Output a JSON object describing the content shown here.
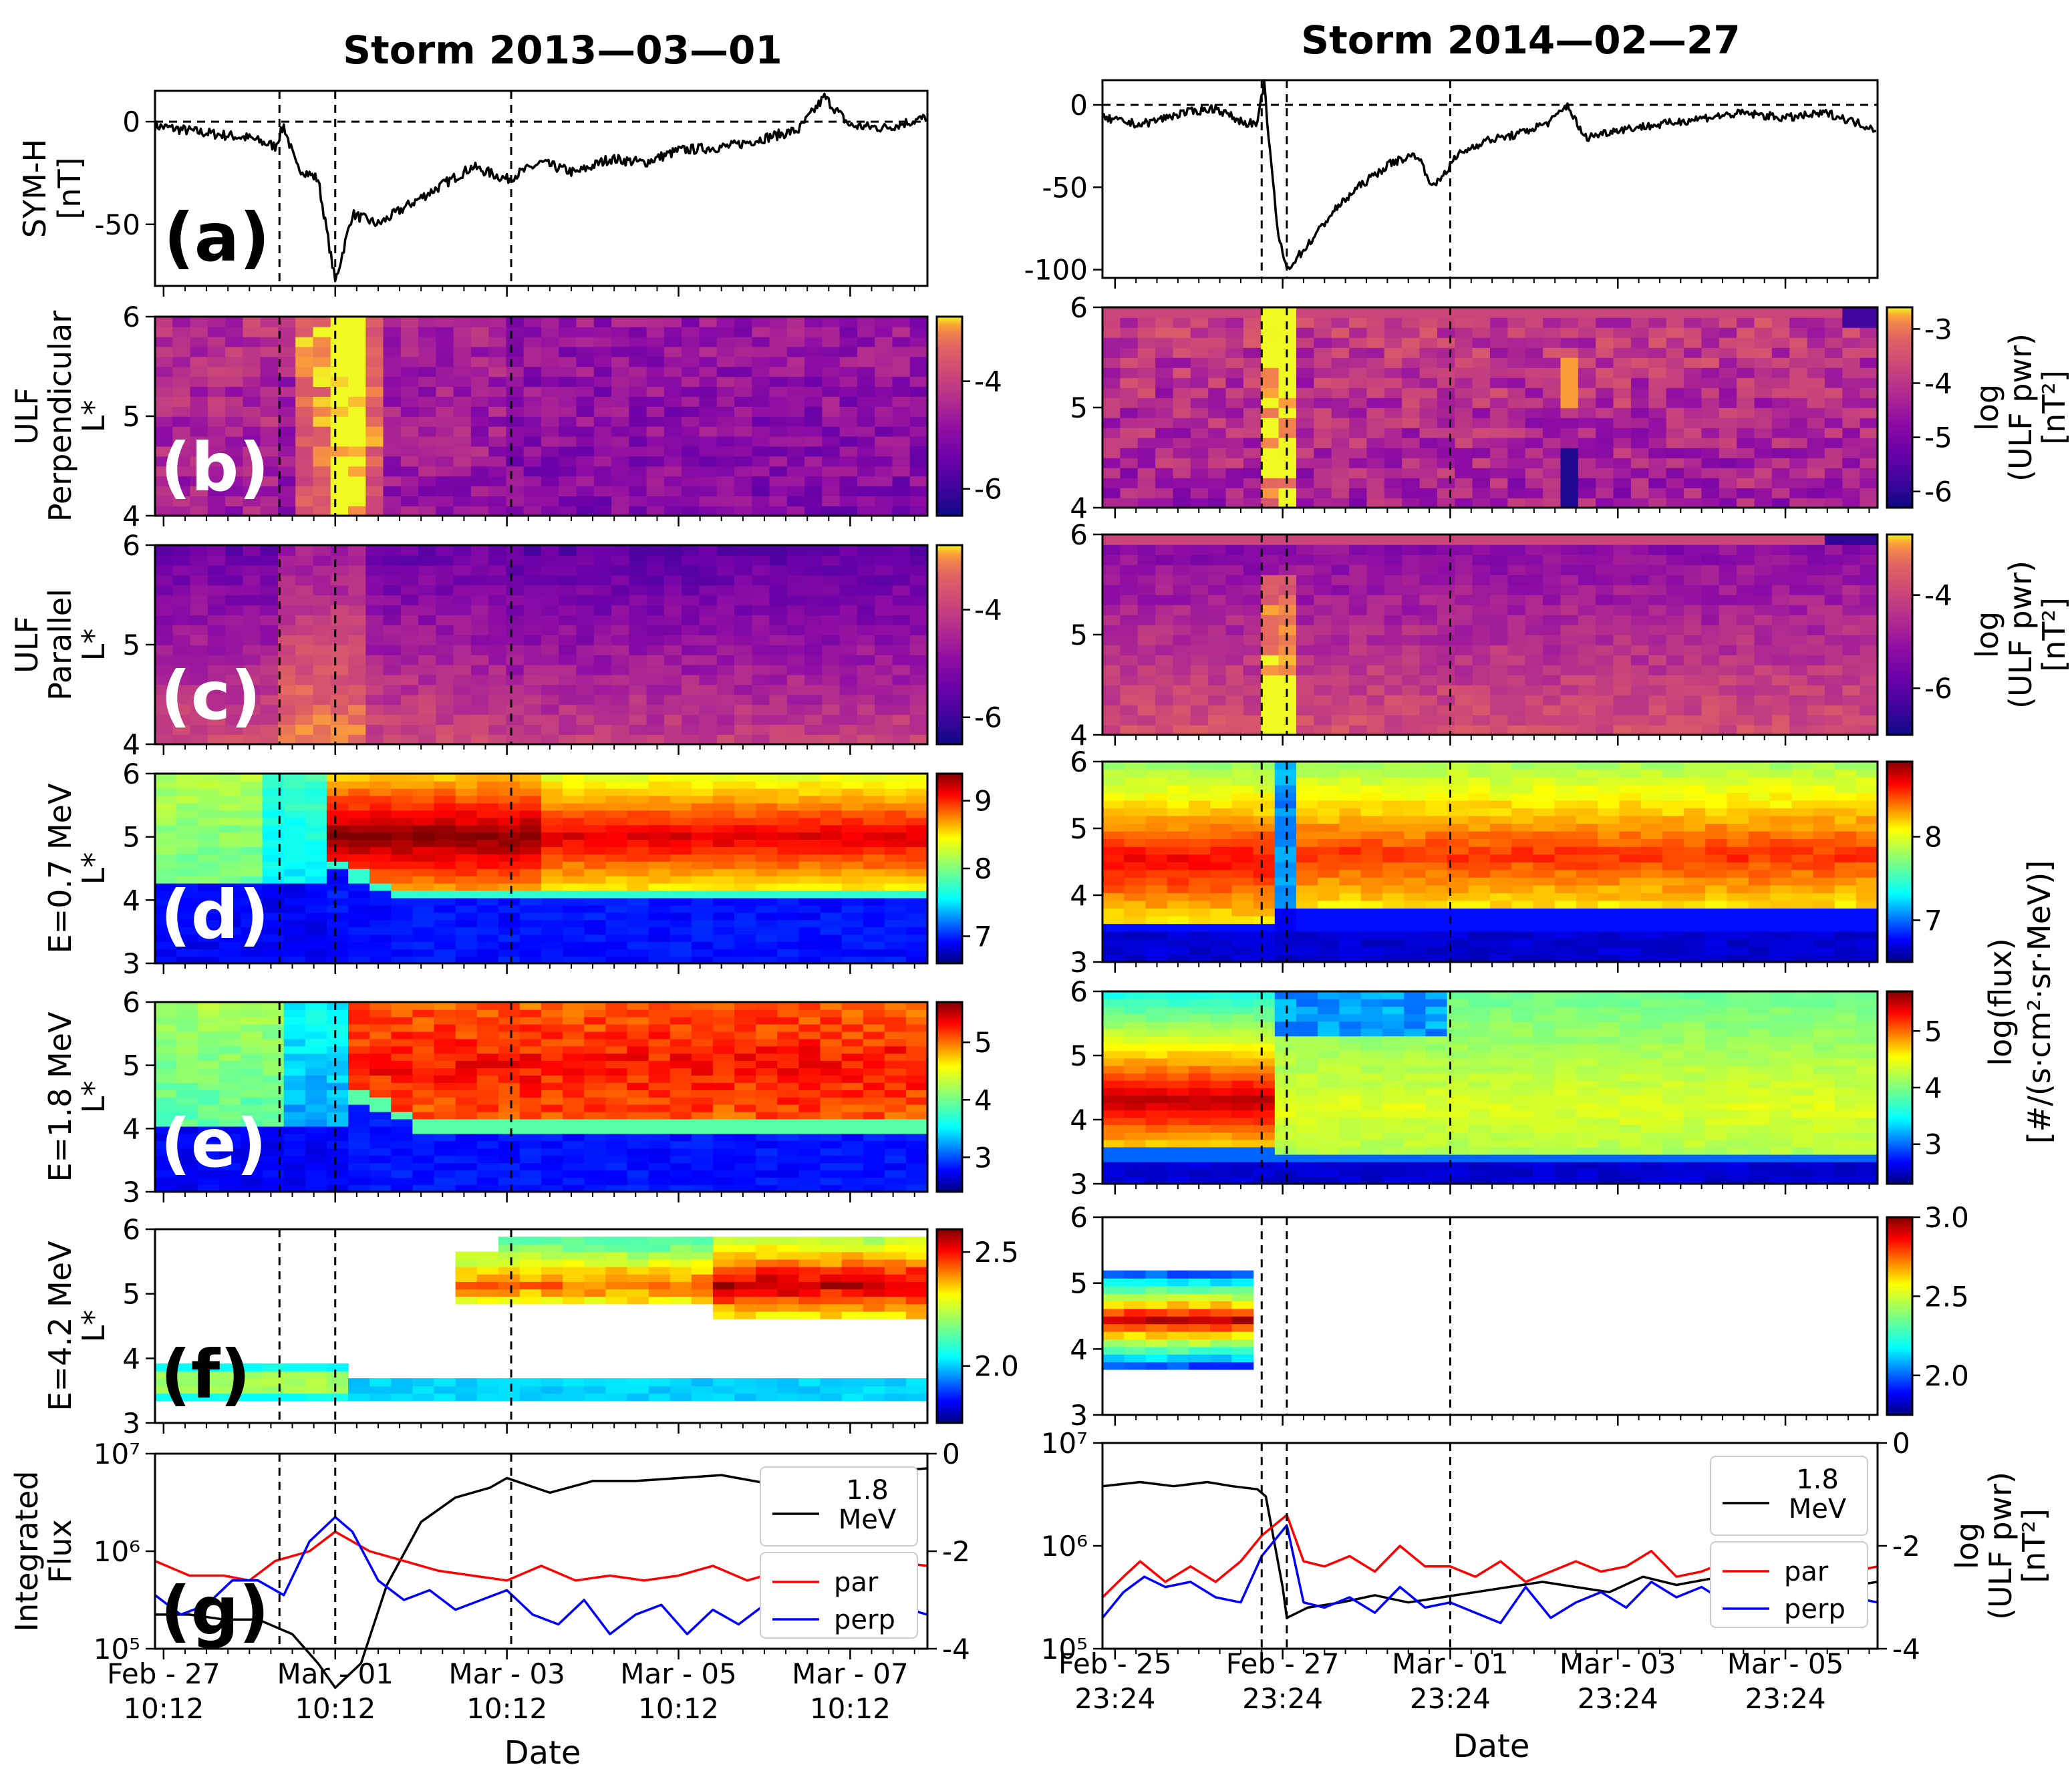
{
  "figure": {
    "x_axis_label": "Date"
  },
  "chart_data": [
    {
      "id": "left",
      "type": "multi-panel",
      "title": "Storm 2013—03—01",
      "x_ticks": [
        {
          "line1": "Feb - 27",
          "line2": "10:12",
          "t": 0
        },
        {
          "line1": "Mar - 01",
          "line2": "10:12",
          "t": 2
        },
        {
          "line1": "Mar - 03",
          "line2": "10:12",
          "t": 4
        },
        {
          "line1": "Mar - 05",
          "line2": "10:12",
          "t": 6
        },
        {
          "line1": "Mar - 07",
          "line2": "10:12",
          "t": 8
        }
      ],
      "xlim_days": [
        -0.1,
        8.9
      ],
      "event_lines_days": [
        1.35,
        2.0,
        4.05
      ],
      "symh": {
        "ylabel": "SYM-H\n[nT]",
        "ylim": [
          -80,
          15
        ],
        "yticks": [
          "0",
          "-50"
        ],
        "ytick_values": [
          0,
          -50
        ],
        "key_points": [
          [
            -0.1,
            -2
          ],
          [
            0.4,
            -5
          ],
          [
            1.0,
            -8
          ],
          [
            1.3,
            -12
          ],
          [
            1.4,
            -2
          ],
          [
            1.55,
            -22
          ],
          [
            1.8,
            -28
          ],
          [
            2.0,
            -78
          ],
          [
            2.2,
            -45
          ],
          [
            2.5,
            -50
          ],
          [
            2.8,
            -42
          ],
          [
            3.2,
            -32
          ],
          [
            3.6,
            -22
          ],
          [
            4.0,
            -28
          ],
          [
            4.4,
            -20
          ],
          [
            4.8,
            -25
          ],
          [
            5.2,
            -18
          ],
          [
            5.6,
            -20
          ],
          [
            6.0,
            -14
          ],
          [
            6.6,
            -12
          ],
          [
            7.0,
            -8
          ],
          [
            7.4,
            -4
          ],
          [
            7.7,
            12
          ],
          [
            8.0,
            -2
          ],
          [
            8.4,
            -3
          ],
          [
            8.9,
            2
          ]
        ]
      },
      "panels": [
        {
          "label": "(b)",
          "ylabel1": "ULF",
          "ylabel2": "Perpendicular",
          "ylabel3": "L*",
          "cmap": "plasma",
          "yticks": [
            "6",
            "5",
            "4"
          ],
          "cbar_ticks": [
            "-4",
            "-6"
          ],
          "cbar_range": [
            -6.5,
            -2.8
          ]
        },
        {
          "label": "(c)",
          "ylabel1": "ULF",
          "ylabel2": "Parallel",
          "ylabel3": "L*",
          "cmap": "plasma",
          "yticks": [
            "6",
            "5",
            "4"
          ],
          "cbar_ticks": [
            "-4",
            "-6"
          ],
          "cbar_range": [
            -6.5,
            -2.8
          ]
        },
        {
          "label": "(d)",
          "ylabel1": "E=0.7 MeV",
          "ylabel2": "",
          "ylabel3": "L*",
          "cmap": "jet",
          "yticks": [
            "6",
            "5",
            "4",
            "3"
          ],
          "cbar_ticks": [
            "9",
            "8",
            "7"
          ],
          "cbar_range": [
            6.6,
            9.4
          ]
        },
        {
          "label": "(e)",
          "ylabel1": "E=1.8 MeV",
          "ylabel2": "",
          "ylabel3": "L*",
          "cmap": "jet",
          "yticks": [
            "6",
            "5",
            "4",
            "3"
          ],
          "cbar_ticks": [
            "5",
            "4",
            "3"
          ],
          "cbar_range": [
            2.4,
            5.7
          ]
        },
        {
          "label": "(f)",
          "ylabel1": "E=4.2 MeV",
          "ylabel2": "",
          "ylabel3": "L*",
          "cmap": "jet",
          "yticks": [
            "6",
            "5",
            "4",
            "3"
          ],
          "cbar_ticks": [
            "2.5",
            "2.0"
          ],
          "cbar_range": [
            1.75,
            2.6
          ]
        }
      ],
      "integrated": {
        "label": "(g)",
        "ylabel": "Integrated\nFlux",
        "yticks_left": [
          "10⁷",
          "10⁶",
          "10⁵"
        ],
        "yticks_right": [
          "0",
          "-2",
          "-4"
        ],
        "series": [
          {
            "name": "1.8\nMeV",
            "color": "#000000",
            "axis": "log_flux",
            "x": [
              -0.1,
              0.3,
              0.7,
              1.1,
              1.5,
              1.8,
              2.0,
              2.3,
              2.6,
              3.0,
              3.4,
              3.8,
              4.0,
              4.5,
              5.0,
              5.5,
              6.0,
              6.5,
              7.0,
              7.5,
              8.0,
              8.5,
              8.9
            ],
            "values": [
              5.35,
              5.35,
              5.3,
              5.3,
              5.15,
              4.85,
              4.6,
              4.85,
              5.65,
              6.3,
              6.55,
              6.65,
              6.75,
              6.6,
              6.72,
              6.72,
              6.75,
              6.78,
              6.7,
              6.85,
              6.85,
              6.82,
              6.85
            ]
          },
          {
            "name": "par",
            "color": "#ff0000",
            "axis": "ulf",
            "x": [
              -0.1,
              0.3,
              0.7,
              1.0,
              1.3,
              1.7,
              2.0,
              2.4,
              2.8,
              3.2,
              3.6,
              4.0,
              4.4,
              4.8,
              5.2,
              5.6,
              6.0,
              6.4,
              6.8,
              7.2,
              7.6,
              8.0,
              8.4,
              8.9
            ],
            "values": [
              -2.2,
              -2.5,
              -2.5,
              -2.6,
              -2.2,
              -2.0,
              -1.6,
              -2.0,
              -2.2,
              -2.4,
              -2.5,
              -2.6,
              -2.3,
              -2.6,
              -2.5,
              -2.6,
              -2.5,
              -2.3,
              -2.6,
              -2.4,
              -2.5,
              -2.3,
              -2.2,
              -2.3
            ]
          },
          {
            "name": "perp",
            "color": "#0000ff",
            "axis": "ulf",
            "x": [
              -0.1,
              0.2,
              0.5,
              0.8,
              1.1,
              1.4,
              1.7,
              2.0,
              2.2,
              2.5,
              2.8,
              3.1,
              3.4,
              3.7,
              4.0,
              4.3,
              4.6,
              4.9,
              5.2,
              5.5,
              5.8,
              6.1,
              6.4,
              6.7,
              7.0,
              7.3,
              7.6,
              7.9,
              8.2,
              8.5,
              8.9
            ],
            "values": [
              -2.9,
              -3.3,
              -3.1,
              -2.6,
              -2.6,
              -2.9,
              -1.8,
              -1.3,
              -1.6,
              -2.6,
              -3.0,
              -2.8,
              -3.2,
              -3.0,
              -2.8,
              -3.3,
              -3.5,
              -3.0,
              -3.7,
              -3.3,
              -3.1,
              -3.7,
              -3.2,
              -3.5,
              -3.1,
              -3.4,
              -3.2,
              -3.0,
              -3.3,
              -3.1,
              -3.3
            ]
          }
        ]
      }
    },
    {
      "id": "right",
      "type": "multi-panel",
      "title": "Storm 2014—02—27",
      "x_ticks": [
        {
          "line1": "Feb - 25",
          "line2": "23:24",
          "t": 0
        },
        {
          "line1": "Feb - 27",
          "line2": "23:24",
          "t": 2
        },
        {
          "line1": "Mar - 01",
          "line2": "23:24",
          "t": 4
        },
        {
          "line1": "Mar - 03",
          "line2": "23:24",
          "t": 6
        },
        {
          "line1": "Mar - 05",
          "line2": "23:24",
          "t": 8
        }
      ],
      "xlim_days": [
        -0.15,
        9.1
      ],
      "event_lines_days": [
        1.75,
        2.05,
        4.0
      ],
      "symh": {
        "ylabel": "",
        "ylim": [
          -105,
          15
        ],
        "yticks": [
          "0",
          "-50",
          "-100"
        ],
        "ytick_values": [
          0,
          -50,
          -100
        ],
        "key_points": [
          [
            -0.15,
            -8
          ],
          [
            0.3,
            -12
          ],
          [
            0.8,
            -5
          ],
          [
            1.2,
            -2
          ],
          [
            1.5,
            -10
          ],
          [
            1.7,
            -12
          ],
          [
            1.78,
            14
          ],
          [
            1.85,
            -30
          ],
          [
            1.95,
            -80
          ],
          [
            2.05,
            -100
          ],
          [
            2.3,
            -85
          ],
          [
            2.6,
            -65
          ],
          [
            2.9,
            -50
          ],
          [
            3.3,
            -35
          ],
          [
            3.6,
            -30
          ],
          [
            3.8,
            -50
          ],
          [
            4.1,
            -30
          ],
          [
            4.4,
            -22
          ],
          [
            4.8,
            -18
          ],
          [
            5.2,
            -10
          ],
          [
            5.4,
            0
          ],
          [
            5.6,
            -20
          ],
          [
            6.0,
            -15
          ],
          [
            6.5,
            -12
          ],
          [
            7.0,
            -8
          ],
          [
            7.5,
            -5
          ],
          [
            8.0,
            -8
          ],
          [
            8.5,
            -5
          ],
          [
            9.1,
            -15
          ]
        ]
      },
      "panels": [
        {
          "label": "",
          "cmap": "plasma",
          "yticks": [
            "6",
            "5",
            "4"
          ],
          "cbar_ticks": [
            "-3",
            "-4",
            "-5",
            "-6"
          ],
          "cbar_range": [
            -6.3,
            -2.6
          ],
          "cbar_label1": "log",
          "cbar_label2": "(ULF pwr)",
          "cbar_label3": "[nT²]"
        },
        {
          "label": "",
          "cmap": "plasma",
          "yticks": [
            "6",
            "5",
            "4"
          ],
          "cbar_ticks": [
            "-4",
            "-6"
          ],
          "cbar_range": [
            -7.0,
            -2.7
          ],
          "cbar_label1": "log",
          "cbar_label2": "(ULF pwr)",
          "cbar_label3": "[nT²]"
        },
        {
          "label": "",
          "cmap": "jet",
          "yticks": [
            "6",
            "5",
            "4",
            "3"
          ],
          "cbar_ticks": [
            "8",
            "7"
          ],
          "cbar_range": [
            6.5,
            8.9
          ]
        },
        {
          "label": "",
          "cmap": "jet",
          "yticks": [
            "6",
            "5",
            "4",
            "3"
          ],
          "cbar_ticks": [
            "5",
            "4",
            "3"
          ],
          "cbar_range": [
            2.3,
            5.7
          ]
        },
        {
          "label": "",
          "cmap": "jet",
          "yticks": [
            "6",
            "5",
            "4",
            "3"
          ],
          "cbar_ticks": [
            "3.0",
            "2.5",
            "2.0"
          ],
          "cbar_range": [
            1.75,
            3.0
          ]
        }
      ],
      "flux_cbar_label1": "log(flux)",
      "flux_cbar_label2": "[#/(s·cm²·sr·MeV)]",
      "integrated": {
        "label": "",
        "ylabel": "",
        "yticks_left": [
          "10⁷",
          "10⁶",
          "10⁵"
        ],
        "yticks_right": [
          "0",
          "-2",
          "-4"
        ],
        "right_label1": "log",
        "right_label2": "(ULF pwr)",
        "right_label3": "[nT²]",
        "series": [
          {
            "name": "1.8\nMeV",
            "color": "#000000",
            "axis": "log_flux",
            "x": [
              -0.15,
              0.3,
              0.7,
              1.1,
              1.4,
              1.7,
              1.8,
              2.0,
              2.05,
              2.3,
              2.7,
              3.1,
              3.5,
              3.9,
              4.3,
              4.7,
              5.1,
              5.5,
              5.9,
              6.3,
              6.7,
              7.1,
              7.5,
              7.9,
              8.3,
              8.7,
              9.1
            ],
            "values": [
              6.58,
              6.62,
              6.58,
              6.62,
              6.58,
              6.55,
              6.48,
              5.6,
              5.3,
              5.4,
              5.45,
              5.52,
              5.45,
              5.5,
              5.55,
              5.6,
              5.65,
              5.6,
              5.55,
              5.7,
              5.62,
              5.68,
              5.6,
              5.62,
              5.55,
              5.6,
              5.65
            ]
          },
          {
            "name": "par",
            "color": "#ff0000",
            "axis": "ulf",
            "x": [
              -0.15,
              0.1,
              0.3,
              0.6,
              0.9,
              1.2,
              1.5,
              1.75,
              1.9,
              2.05,
              2.25,
              2.5,
              2.8,
              3.1,
              3.4,
              3.7,
              4.0,
              4.3,
              4.6,
              4.9,
              5.2,
              5.5,
              5.8,
              6.1,
              6.4,
              6.7,
              7.0,
              7.3,
              7.6,
              7.9,
              8.2,
              8.5,
              8.8,
              9.1
            ],
            "values": [
              -3.0,
              -2.6,
              -2.3,
              -2.7,
              -2.4,
              -2.7,
              -2.3,
              -1.8,
              -1.6,
              -1.4,
              -2.3,
              -2.4,
              -2.2,
              -2.5,
              -2.0,
              -2.4,
              -2.4,
              -2.6,
              -2.3,
              -2.7,
              -2.5,
              -2.3,
              -2.5,
              -2.4,
              -2.1,
              -2.6,
              -2.5,
              -2.3,
              -2.5,
              -2.4,
              -2.6,
              -2.4,
              -2.5,
              -2.4
            ]
          },
          {
            "name": "perp",
            "color": "#0000ff",
            "axis": "ulf",
            "x": [
              -0.15,
              0.1,
              0.35,
              0.6,
              0.9,
              1.2,
              1.5,
              1.75,
              1.9,
              2.05,
              2.25,
              2.5,
              2.8,
              3.1,
              3.4,
              3.7,
              4.0,
              4.3,
              4.6,
              4.9,
              5.2,
              5.5,
              5.8,
              6.1,
              6.4,
              6.7,
              7.0,
              7.3,
              7.6,
              7.9,
              8.2,
              8.5,
              8.8,
              9.1
            ],
            "values": [
              -3.4,
              -2.9,
              -2.6,
              -2.8,
              -2.7,
              -3.0,
              -3.1,
              -2.2,
              -1.9,
              -1.6,
              -3.1,
              -3.2,
              -3.0,
              -3.3,
              -2.8,
              -3.2,
              -3.1,
              -3.3,
              -3.5,
              -2.8,
              -3.4,
              -3.1,
              -2.9,
              -3.2,
              -2.7,
              -3.0,
              -2.8,
              -3.1,
              -3.0,
              -2.9,
              -3.2,
              -2.7,
              -3.0,
              -3.1
            ]
          }
        ]
      }
    }
  ]
}
